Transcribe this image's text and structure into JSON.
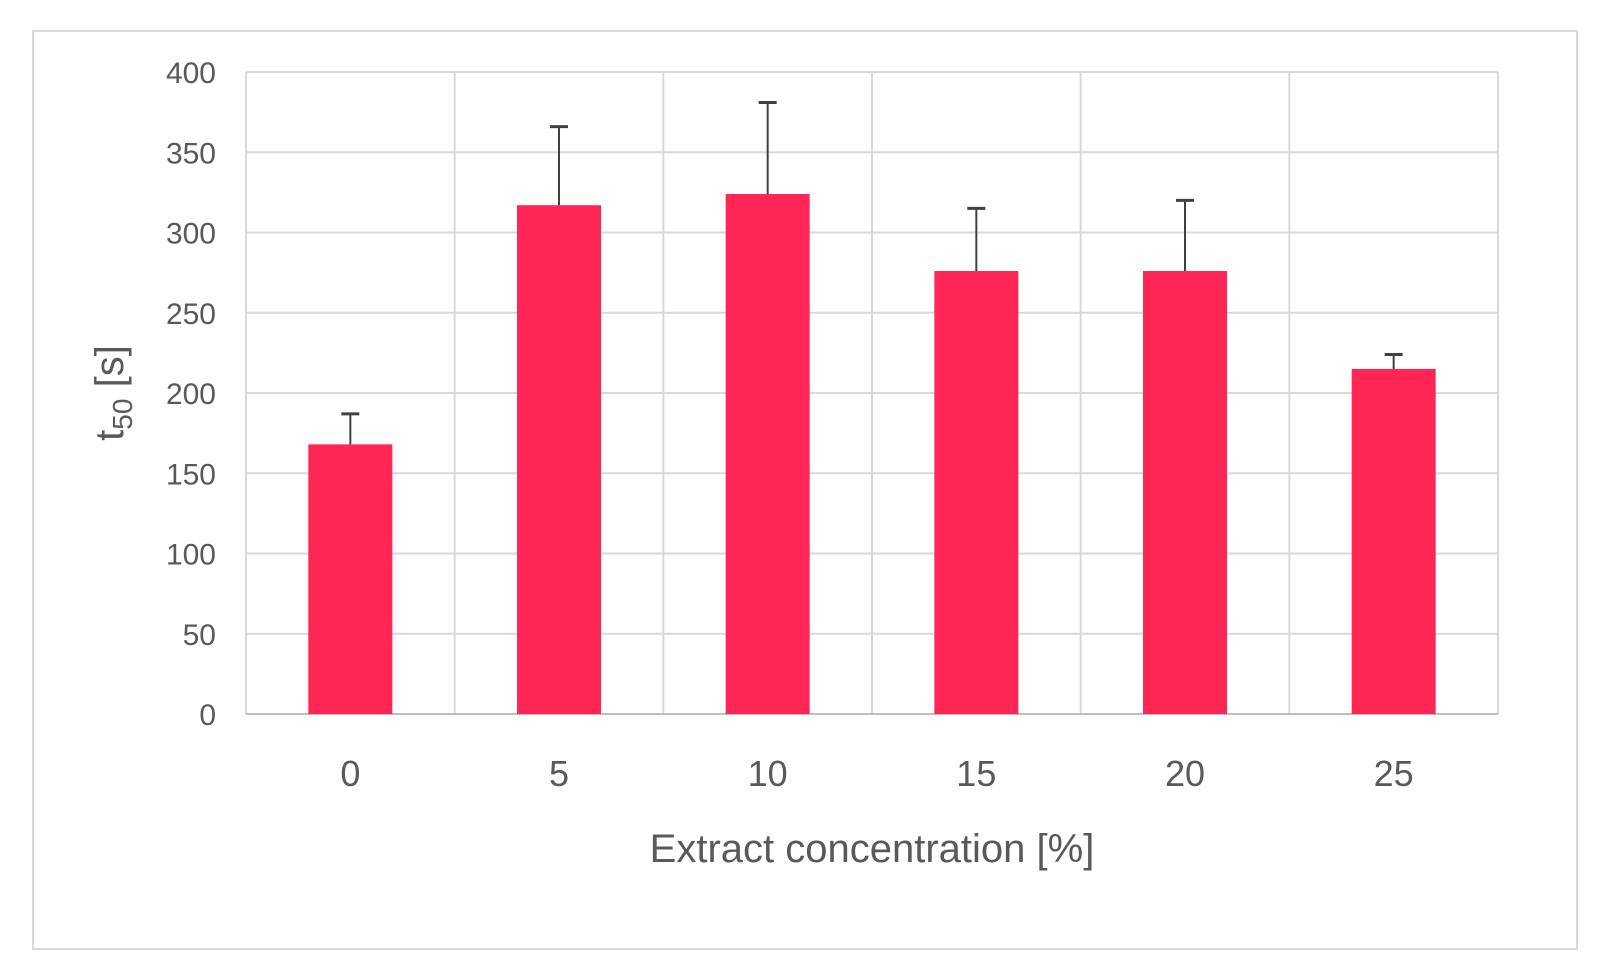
{
  "chart_data": {
    "type": "bar",
    "title": "",
    "xlabel": "Extract concentration [%]",
    "ylabel": {
      "base": "t",
      "subscript": "50",
      "unit": " [s]"
    },
    "categories": [
      "0",
      "5",
      "10",
      "15",
      "20",
      "25"
    ],
    "series": [
      {
        "values": [
          168,
          317,
          324,
          276,
          276,
          215
        ],
        "error_upper": [
          187,
          366,
          381,
          315,
          320,
          224
        ],
        "color": "#ff2555"
      }
    ],
    "ylim": [
      0,
      400
    ],
    "yticks": [
      0,
      50,
      100,
      150,
      200,
      250,
      300,
      350,
      400
    ],
    "grid": true,
    "legend": "none"
  }
}
